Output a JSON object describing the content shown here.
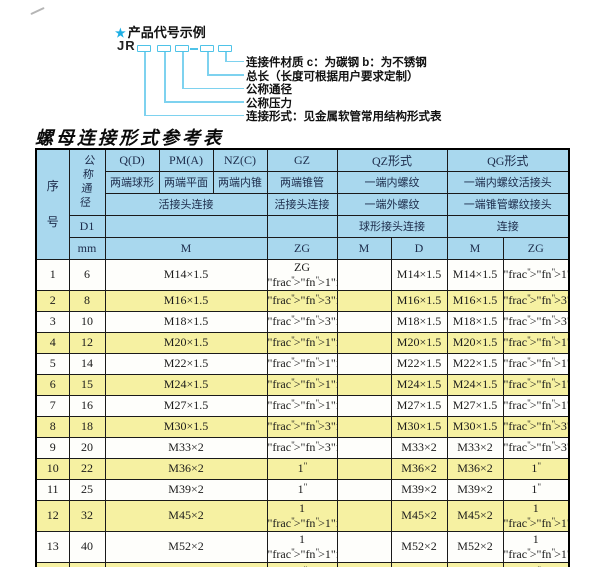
{
  "diagram": {
    "star_icon": "★",
    "title": "产品代号示例",
    "prefix": "JR",
    "labels": [
      "连接件材质  c：为碳钢  b：为不锈钢",
      "总长（长度可根据用户要求定制）",
      "公称通径",
      "公称压力",
      "连接形式：见金属软管常用结构形式表"
    ]
  },
  "table": {
    "title": "螺母连接形式参考表",
    "header": {
      "seq": "序号",
      "dn": "公称通径",
      "d1": "D1",
      "mm": "mm",
      "q": "Q(D)",
      "q_sub": "两端球形",
      "pm": "PM(A)",
      "pm_sub": "两端平面",
      "nz": "NZ(C)",
      "nz_sub": "两端内锥",
      "union_conn": "活接头连接",
      "gz": "GZ",
      "gz_sub": "两端锥管",
      "gz_conn": "活接头连接",
      "qz": "QZ形式",
      "qz_sub1": "一端内螺纹",
      "qz_sub2": "一端外螺纹",
      "qz_conn": "球形接头连接",
      "qg": "QG形式",
      "qg_sub1": "一端内螺纹活接头",
      "qg_sub2": "一端锥管螺纹接头",
      "qg_conn": "连接",
      "m": "M",
      "zg": "ZG",
      "d": "D"
    },
    "rows": [
      [
        "1",
        "6",
        "M14×1.5",
        "ZG 1/4\"",
        "",
        "M14×1.5",
        "M14×1.5",
        "1/4\""
      ],
      [
        "2",
        "8",
        "M16×1.5",
        "3/8\"",
        "",
        "M16×1.5",
        "M16×1.5",
        "3/8\""
      ],
      [
        "3",
        "10",
        "M18×1.5",
        "3/8\"",
        "",
        "M18×1.5",
        "M18×1.5",
        "3/8\""
      ],
      [
        "4",
        "12",
        "M20×1.5",
        "1/2\"",
        "",
        "M20×1.5",
        "M20×1.5",
        "1/2\""
      ],
      [
        "5",
        "14",
        "M22×1.5",
        "1/2\"",
        "",
        "M22×1.5",
        "M22×1.5",
        "1/2\""
      ],
      [
        "6",
        "15",
        "M24×1.5",
        "1/2\"",
        "",
        "M24×1.5",
        "M24×1.5",
        "1/2\""
      ],
      [
        "7",
        "16",
        "M27×1.5",
        "1/2\"",
        "",
        "M27×1.5",
        "M27×1.5",
        "1/2\""
      ],
      [
        "8",
        "18",
        "M30×1.5",
        "3/4\"",
        "",
        "M30×1.5",
        "M30×1.5",
        "3/4\""
      ],
      [
        "9",
        "20",
        "M33×2",
        "3/4\"",
        "",
        "M33×2",
        "M33×2",
        "3/4\""
      ],
      [
        "10",
        "22",
        "M36×2",
        "1\"",
        "",
        "M36×2",
        "M36×2",
        "1\""
      ],
      [
        "11",
        "25",
        "M39×2",
        "1\"",
        "",
        "M39×2",
        "M39×2",
        "1\""
      ],
      [
        "12",
        "32",
        "M45×2",
        "1 1/4\"",
        "",
        "M45×2",
        "M45×2",
        "1 1/4\""
      ],
      [
        "13",
        "40",
        "M52×2",
        "1 1/2\"",
        "",
        "M52×2",
        "M52×2",
        "1 1/2\""
      ],
      [
        "14",
        "50",
        "M64×2",
        "2\"",
        "",
        "M64×2",
        "M64×2",
        "2\""
      ]
    ],
    "colors": {
      "header_bg": "#a9d8ee",
      "row_alt_bg": "#f6f1a2",
      "row_bg": "#fefefb",
      "border": "#1a1a1a",
      "header_text": "#1c2b4a",
      "diagram_line": "#7ed2ef",
      "box_border": "#4fc3e8",
      "star_blue": "#1daee4"
    }
  }
}
